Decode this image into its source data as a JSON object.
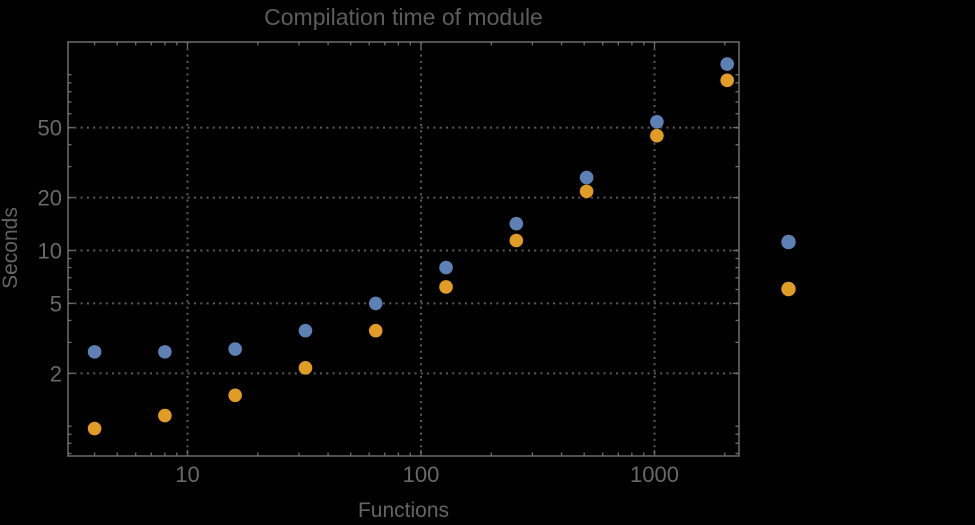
{
  "title": "Compilation time of module",
  "colors": {
    "background": "#000000",
    "frame": "#6d6d6d",
    "grid": "#5c5c5c",
    "tick_text": "#696969",
    "title_text": "#5d5d5d",
    "series_blue": "#5E81B5",
    "series_orange": "#E09C24"
  },
  "chart_data": {
    "type": "scatter",
    "title": "Compilation time of module",
    "xlabel": "Functions",
    "ylabel": "Seconds",
    "x_scale": "log",
    "y_scale": "log",
    "x_range": [
      3.07,
      2300
    ],
    "y_range": [
      0.68,
      153
    ],
    "grid": "dotted lines at labeled ticks only",
    "x_ticks": [
      10,
      100,
      1000
    ],
    "x_tick_labels": [
      "10",
      "100",
      "1000"
    ],
    "y_ticks": [
      2,
      5,
      10,
      20,
      50
    ],
    "y_tick_labels": [
      "2",
      "5",
      "10",
      "20",
      "50"
    ],
    "x": [
      4,
      8,
      16,
      32,
      64,
      128,
      256,
      512,
      1024,
      2048
    ],
    "series": [
      {
        "name": "series_1",
        "color": "#5E81B5",
        "values": [
          2.65,
          2.65,
          2.75,
          3.5,
          5.0,
          8.0,
          14.2,
          26,
          54,
          115
        ]
      },
      {
        "name": "series_2",
        "color": "#E09C24",
        "values": [
          0.97,
          1.15,
          1.5,
          2.15,
          3.5,
          6.2,
          11.4,
          21.7,
          45,
          93
        ]
      }
    ],
    "legend_position": "right-of-frame, markers only (no visible label text)"
  },
  "legend": {
    "markers": [
      {
        "name": "series_1",
        "color": "#5E81B5"
      },
      {
        "name": "series_2",
        "color": "#E09C24"
      }
    ]
  }
}
